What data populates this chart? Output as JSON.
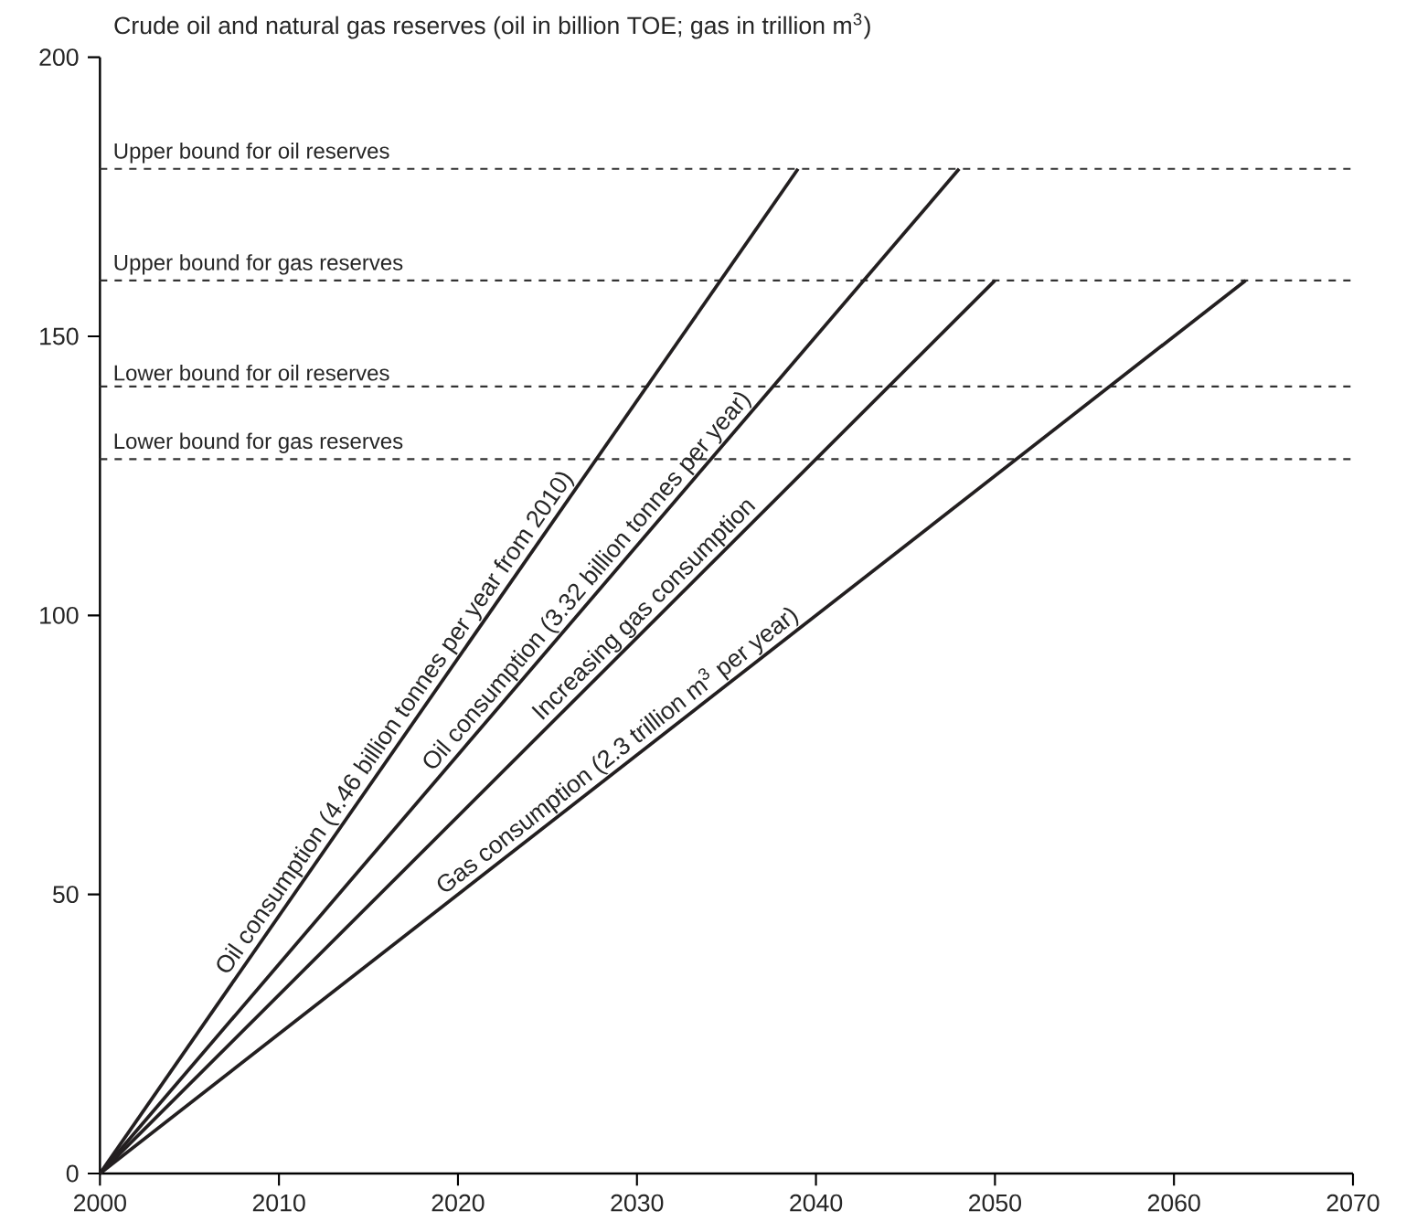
{
  "chart_data": {
    "type": "line",
    "title": "Crude oil and natural gas reserves (oil in billion TOE; gas in trillion m$^{3}$)",
    "xlim": [
      2000,
      2070
    ],
    "ylim": [
      0,
      200
    ],
    "xticks": [
      2000,
      2010,
      2020,
      2030,
      2040,
      2050,
      2060,
      2070
    ],
    "yticks": [
      0,
      50,
      100,
      150,
      200
    ],
    "grid": false,
    "marker": "none",
    "line_style": "solid",
    "series": [
      {
        "name": "Oil consumption (4.46 billion tonnes per year from 2010)",
        "color": "#231f20",
        "x": [
          2000,
          2039
        ],
        "values": [
          0,
          180
        ]
      },
      {
        "name": "Oil consumption (3.32 billion tonnes per year)",
        "color": "#231f20",
        "x": [
          2000,
          2048
        ],
        "values": [
          0,
          180
        ]
      },
      {
        "name": "Increasing gas consumption",
        "color": "#231f20",
        "x": [
          2000,
          2050
        ],
        "values": [
          0,
          160
        ]
      },
      {
        "name": "Gas consumption (2.3 trillion m$^{3}$ per year)",
        "color": "#231f20",
        "x": [
          2000,
          2064
        ],
        "values": [
          0,
          160
        ]
      }
    ],
    "ref_lines": [
      {
        "axis": "y",
        "value": 180,
        "label": "Upper bound for oil reserves",
        "color": "#333333",
        "line_style": "dashed"
      },
      {
        "axis": "y",
        "value": 160,
        "label": "Upper bound for gas reserves",
        "color": "#333333",
        "line_style": "dashed"
      },
      {
        "axis": "y",
        "value": 141,
        "label": "Lower bound for oil reserves",
        "color": "#333333",
        "line_style": "dashed"
      },
      {
        "axis": "y",
        "value": 128,
        "label": "Lower bound for gas reserves",
        "color": "#333333",
        "line_style": "dashed"
      }
    ]
  }
}
